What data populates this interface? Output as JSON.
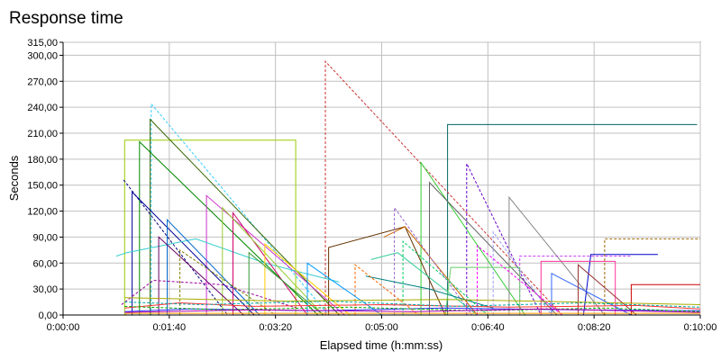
{
  "chart_data": {
    "type": "line",
    "title": "Response time",
    "xlabel": "Elapsed time (h:mm:ss)",
    "ylabel": "Seconds",
    "xlim": [
      "0:00:00",
      "0:10:00"
    ],
    "ylim": [
      0,
      315
    ],
    "x_ticks": [
      "0:00:00",
      "0:01:40",
      "0:03:20",
      "0:05:00",
      "0:06:40",
      "0:08:20",
      "0:10:00"
    ],
    "y_ticks": [
      "0,00",
      "30,00",
      "60,00",
      "90,00",
      "120,00",
      "150,00",
      "180,00",
      "210,00",
      "240,00",
      "270,00",
      "300,00",
      "315,00"
    ],
    "grid": true,
    "legend": "none",
    "series": [
      {
        "color": "#99cc00",
        "dash": false,
        "x": [
          "0:00:58",
          "0:00:58",
          "0:03:39",
          "0:03:39"
        ],
        "y": [
          0,
          202,
          202,
          0
        ]
      },
      {
        "color": "#006666",
        "dash": false,
        "x": [
          "0:05:50",
          "0:06:02",
          "0:06:02",
          "0:09:57"
        ],
        "y": [
          0,
          0,
          220,
          220
        ]
      },
      {
        "color": "#cc3333",
        "dash": true,
        "x": [
          "0:04:07",
          "0:04:07",
          "0:07:50"
        ],
        "y": [
          0,
          293,
          0
        ]
      },
      {
        "color": "#33ccff",
        "dash": true,
        "x": [
          "0:01:23",
          "0:01:23",
          "0:04:10"
        ],
        "y": [
          0,
          244,
          0
        ]
      },
      {
        "color": "#336600",
        "dash": false,
        "x": [
          "0:01:22",
          "0:01:22",
          "0:04:20"
        ],
        "y": [
          0,
          226,
          0
        ]
      },
      {
        "color": "#008800",
        "dash": false,
        "x": [
          "0:01:12",
          "0:01:12",
          "0:04:00"
        ],
        "y": [
          0,
          200,
          0
        ]
      },
      {
        "color": "#33cc33",
        "dash": false,
        "x": [
          "0:05:35",
          "0:05:37",
          "0:05:37",
          "0:07:15"
        ],
        "y": [
          0,
          0,
          176,
          0
        ]
      },
      {
        "color": "#666666",
        "dash": false,
        "x": [
          "0:05:45",
          "0:05:45",
          "0:07:45"
        ],
        "y": [
          0,
          153,
          0
        ]
      },
      {
        "color": "#000080",
        "dash": true,
        "x": [
          "0:00:57",
          "0:02:35"
        ],
        "y": [
          156,
          0
        ]
      },
      {
        "color": "#6600cc",
        "dash": true,
        "x": [
          "0:06:20",
          "0:06:20",
          "0:07:30"
        ],
        "y": [
          0,
          175,
          0
        ]
      },
      {
        "color": "#cc33cc",
        "dash": false,
        "x": [
          "0:02:15",
          "0:02:15",
          "0:04:25"
        ],
        "y": [
          0,
          138,
          0
        ]
      },
      {
        "color": "#888888",
        "dash": false,
        "x": [
          "0:07:00",
          "0:07:00",
          "0:08:30"
        ],
        "y": [
          0,
          136,
          0
        ]
      },
      {
        "color": "#000099",
        "dash": false,
        "x": [
          "0:01:05",
          "0:01:05",
          "0:03:00"
        ],
        "y": [
          0,
          142,
          0
        ]
      },
      {
        "color": "#663300",
        "dash": false,
        "x": [
          "0:04:10",
          "0:04:10",
          "0:05:22",
          "0:06:00"
        ],
        "y": [
          0,
          78,
          102,
          0
        ]
      },
      {
        "color": "#0000cc",
        "dash": false,
        "x": [
          "0:08:10",
          "0:08:17",
          "0:09:20"
        ],
        "y": [
          0,
          70,
          70
        ]
      },
      {
        "color": "#996600",
        "dash": true,
        "x": [
          "0:08:30",
          "0:08:30",
          "0:10:00"
        ],
        "y": [
          0,
          88,
          88
        ]
      },
      {
        "color": "#cc6600",
        "dash": false,
        "x": [
          "0:05:02",
          "0:05:22",
          "0:06:30"
        ],
        "y": [
          90,
          102,
          0
        ]
      },
      {
        "color": "#9999ff",
        "dash": true,
        "x": [
          "0:06:45",
          "0:06:45",
          "0:07:40"
        ],
        "y": [
          0,
          96,
          0
        ]
      },
      {
        "color": "#33cccc",
        "dash": false,
        "x": [
          "0:00:50",
          "0:01:00",
          "0:02:05",
          "0:03:10",
          "0:04:20"
        ],
        "y": [
          68,
          72,
          88,
          60,
          38
        ]
      },
      {
        "color": "#cc0066",
        "dash": false,
        "x": [
          "0:02:40",
          "0:02:40",
          "0:03:50"
        ],
        "y": [
          0,
          118,
          0
        ]
      },
      {
        "color": "#99cc33",
        "dash": false,
        "x": [
          "0:02:30",
          "0:02:30",
          "0:04:05"
        ],
        "y": [
          0,
          124,
          0
        ]
      },
      {
        "color": "#0066cc",
        "dash": false,
        "x": [
          "0:01:38",
          "0:01:38",
          "0:03:05"
        ],
        "y": [
          0,
          110,
          0
        ]
      },
      {
        "color": "#660066",
        "dash": false,
        "x": [
          "0:01:30",
          "0:01:30",
          "0:02:50"
        ],
        "y": [
          0,
          90,
          0
        ]
      },
      {
        "color": "#9966cc",
        "dash": true,
        "x": [
          "0:05:12",
          "0:05:12",
          "0:06:25"
        ],
        "y": [
          0,
          124,
          0
        ]
      },
      {
        "color": "#33cc99",
        "dash": false,
        "x": [
          "0:04:50",
          "0:05:15",
          "0:06:30"
        ],
        "y": [
          64,
          72,
          0
        ]
      },
      {
        "color": "#cc33ff",
        "dash": true,
        "x": [
          "0:07:10",
          "0:07:10",
          "0:08:55"
        ],
        "y": [
          0,
          68,
          68
        ]
      },
      {
        "color": "#ff3399",
        "dash": false,
        "x": [
          "0:07:30",
          "0:07:30",
          "0:08:40",
          "0:08:40",
          "0:09:40"
        ],
        "y": [
          0,
          62,
          62,
          0,
          0
        ]
      },
      {
        "color": "#66cc66",
        "dash": false,
        "x": [
          "0:06:00",
          "0:06:05",
          "0:07:10",
          "0:07:10"
        ],
        "y": [
          0,
          55,
          55,
          0
        ]
      },
      {
        "color": "#cc0000",
        "dash": false,
        "x": [
          "0:08:55",
          "0:08:55",
          "0:10:00"
        ],
        "y": [
          0,
          35,
          35
        ]
      },
      {
        "color": "#990099",
        "dash": true,
        "x": [
          "0:00:55",
          "0:01:25",
          "0:02:30",
          "0:03:40"
        ],
        "y": [
          12,
          40,
          35,
          8
        ]
      },
      {
        "color": "#008080",
        "dash": false,
        "x": [
          "0:04:45",
          "0:05:45",
          "0:06:45"
        ],
        "y": [
          45,
          30,
          8
        ]
      },
      {
        "color": "#ffcc00",
        "dash": false,
        "x": [
          "0:03:10",
          "0:03:10",
          "0:04:30"
        ],
        "y": [
          0,
          82,
          0
        ]
      },
      {
        "color": "#ff6600",
        "dash": true,
        "x": [
          "0:04:35",
          "0:04:35",
          "0:05:35"
        ],
        "y": [
          0,
          58,
          0
        ]
      },
      {
        "color": "#3366ff",
        "dash": false,
        "x": [
          "0:07:40",
          "0:07:40",
          "0:08:55"
        ],
        "y": [
          0,
          48,
          0
        ]
      },
      {
        "color": "#00cc66",
        "dash": true,
        "x": [
          "0:05:20",
          "0:05:20",
          "0:06:40"
        ],
        "y": [
          0,
          85,
          0
        ]
      },
      {
        "color": "#993333",
        "dash": false,
        "x": [
          "0:08:05",
          "0:08:05",
          "0:09:00"
        ],
        "y": [
          0,
          58,
          0
        ]
      },
      {
        "color": "#339933",
        "dash": false,
        "x": [
          "0:02:55",
          "0:02:55",
          "0:04:05"
        ],
        "y": [
          0,
          72,
          0
        ]
      },
      {
        "color": "#ff00ff",
        "dash": true,
        "x": [
          "0:06:30",
          "0:06:30",
          "0:07:50"
        ],
        "y": [
          0,
          80,
          0
        ]
      },
      {
        "color": "#0099ff",
        "dash": false,
        "x": [
          "0:03:50",
          "0:03:50",
          "0:05:00"
        ],
        "y": [
          0,
          60,
          0
        ]
      },
      {
        "color": "#808000",
        "dash": true,
        "x": [
          "0:01:50",
          "0:01:50",
          "0:03:20"
        ],
        "y": [
          0,
          75,
          0
        ]
      },
      {
        "color": "#ff3333",
        "dash": false,
        "x": [
          "0:00:58",
          "0:01:50",
          "0:03:00",
          "0:05:00",
          "0:07:00",
          "0:09:00",
          "0:10:00"
        ],
        "y": [
          8,
          14,
          10,
          12,
          9,
          11,
          7
        ]
      },
      {
        "color": "#3333ff",
        "dash": false,
        "x": [
          "0:00:58",
          "0:02:00",
          "0:04:00",
          "0:06:00",
          "0:08:00",
          "0:10:00"
        ],
        "y": [
          4,
          7,
          5,
          8,
          6,
          5
        ]
      },
      {
        "color": "#00aa00",
        "dash": true,
        "x": [
          "0:00:58",
          "0:02:30",
          "0:04:30",
          "0:06:30",
          "0:08:30",
          "0:10:00"
        ],
        "y": [
          10,
          6,
          9,
          5,
          8,
          4
        ]
      },
      {
        "color": "#aa00aa",
        "dash": false,
        "x": [
          "0:00:58",
          "0:03:00",
          "0:05:30",
          "0:07:30",
          "0:10:00"
        ],
        "y": [
          3,
          6,
          4,
          7,
          3
        ]
      },
      {
        "color": "#00aaaa",
        "dash": true,
        "x": [
          "0:00:58",
          "0:02:10",
          "0:04:10",
          "0:06:10",
          "0:08:10",
          "0:10:00"
        ],
        "y": [
          15,
          12,
          16,
          10,
          14,
          9
        ]
      },
      {
        "color": "#aaaa00",
        "dash": false,
        "x": [
          "0:00:58",
          "0:03:30",
          "0:06:00",
          "0:08:40",
          "0:10:00"
        ],
        "y": [
          20,
          16,
          18,
          14,
          12
        ]
      },
      {
        "color": "#ff9900",
        "dash": false,
        "x": [
          "0:00:00",
          "0:00:58",
          "0:01:00",
          "0:10:00"
        ],
        "y": [
          0,
          0,
          2,
          2
        ]
      }
    ]
  }
}
